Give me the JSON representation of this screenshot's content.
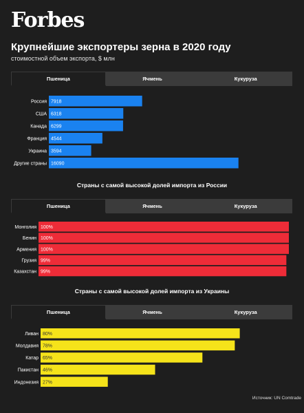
{
  "logo": "Forbes",
  "title": "Крупнейшие экспортеры зерна в 2020 году",
  "subtitle": "стоимостной объем экспорта, $ млн",
  "section2_title": "Страны с самой высокой долей импорта из России",
  "section3_title": "Страны с самой высокой долей импорта из Украины",
  "tabs": [
    "Пшеница",
    "Ячмень",
    "Кукуруза"
  ],
  "source": "Источник: UN Comtrade",
  "colors": {
    "blue": "#1a82f0",
    "red": "#ee2c38",
    "yellow": "#f5e31a",
    "bg": "#1e1e1e"
  },
  "chart_data": [
    {
      "type": "bar",
      "orientation": "horizontal",
      "categories": [
        "Россия",
        "США",
        "Канада",
        "Франция",
        "Украина",
        "Другие страны"
      ],
      "values": [
        7918,
        6318,
        6299,
        4544,
        3594,
        16090
      ],
      "labels": [
        "7918",
        "6318",
        "6299",
        "4544",
        "3594",
        "16090"
      ],
      "xlim": [
        0,
        18500
      ],
      "color": "#1a82f0"
    },
    {
      "type": "bar",
      "orientation": "horizontal",
      "categories": [
        "Монголия",
        "Бенин",
        "Армения",
        "Грузия",
        "Казахстан"
      ],
      "values": [
        100,
        100,
        100,
        99,
        99
      ],
      "labels": [
        "100%",
        "100%",
        "100%",
        "99%",
        "99%"
      ],
      "xlim": [
        0,
        100
      ],
      "color": "#ee2c38"
    },
    {
      "type": "bar",
      "orientation": "horizontal",
      "categories": [
        "Ливан",
        "Молдавия",
        "Катар",
        "Пакистан",
        "Индонезия"
      ],
      "values": [
        80,
        78,
        65,
        46,
        27
      ],
      "labels": [
        "80%",
        "78%",
        "65%",
        "46%",
        "27%"
      ],
      "xlim": [
        0,
        100
      ],
      "color": "#f5e31a"
    }
  ]
}
